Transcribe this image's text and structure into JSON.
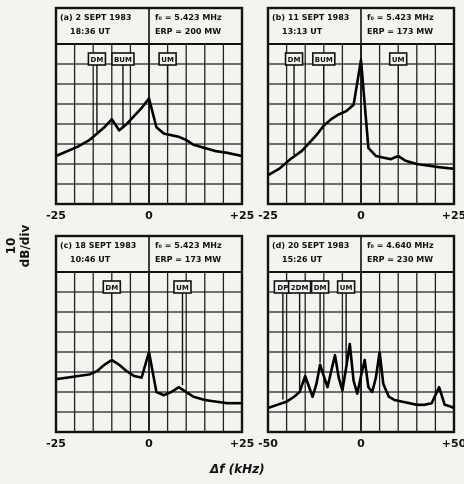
{
  "ylabel": "10 dB/div",
  "xlabel": "Δf (kHz)",
  "chart_data": [
    {
      "type": "line",
      "panel": "(a)",
      "date": "2 SEPT 1983",
      "time": "18:36 UT",
      "freq": "f₀ = 5.423 MHz",
      "erp": "ERP = 200 MW",
      "xlim": [
        -25,
        25
      ],
      "xticks": [
        "-25",
        "0",
        "+25"
      ],
      "markers": [
        {
          "label": "DM",
          "x": -14
        },
        {
          "label": "BUM",
          "x": -7
        },
        {
          "label": "UM",
          "x": 5
        }
      ],
      "x": [
        -25,
        -22,
        -19,
        -16,
        -14,
        -12,
        -10,
        -8,
        -6,
        -4,
        -2,
        0,
        2,
        4,
        6,
        8,
        10,
        12,
        15,
        18,
        21,
        25
      ],
      "y": [
        3.0,
        3.3,
        3.6,
        4.0,
        4.4,
        4.8,
        5.3,
        4.6,
        5.0,
        5.5,
        6.0,
        6.6,
        4.8,
        4.4,
        4.3,
        4.2,
        4.0,
        3.7,
        3.5,
        3.3,
        3.2,
        3.0
      ]
    },
    {
      "type": "line",
      "panel": "(b)",
      "date": "11 SEPT 1983",
      "time": "13:13 UT",
      "freq": "f₀ = 5.423 MHz",
      "erp": "ERP = 173 MW",
      "xlim": [
        -25,
        25
      ],
      "xticks": [
        "-25",
        "0",
        "+25"
      ],
      "markers": [
        {
          "label": "DM",
          "x": -18
        },
        {
          "label": "BUM",
          "x": -10
        },
        {
          "label": "UM",
          "x": 10
        }
      ],
      "x": [
        -25,
        -22,
        -19,
        -16,
        -14,
        -12,
        -10,
        -8,
        -6,
        -4,
        -2,
        0,
        2,
        4,
        6,
        8,
        10,
        12,
        15,
        18,
        21,
        25
      ],
      "y": [
        1.8,
        2.2,
        2.8,
        3.3,
        3.8,
        4.3,
        4.9,
        5.3,
        5.6,
        5.8,
        6.2,
        9.0,
        3.5,
        3.0,
        2.9,
        2.8,
        3.0,
        2.7,
        2.5,
        2.4,
        2.3,
        2.2
      ]
    },
    {
      "type": "line",
      "panel": "(c)",
      "date": "18 SEPT 1983",
      "time": "10:46 UT",
      "freq": "f₀ = 5.423 MHz",
      "erp": "ERP = 173 MW",
      "xlim": [
        -25,
        25
      ],
      "xticks": [
        "-25",
        "0",
        "+25"
      ],
      "markers": [
        {
          "label": "DM",
          "x": -10
        },
        {
          "label": "UM",
          "x": 9
        }
      ],
      "x": [
        -25,
        -22,
        -19,
        -16,
        -14,
        -12,
        -10,
        -8,
        -6,
        -4,
        -2,
        0,
        2,
        4,
        6,
        8,
        10,
        12,
        15,
        18,
        21,
        25
      ],
      "y": [
        3.3,
        3.4,
        3.5,
        3.6,
        3.8,
        4.2,
        4.5,
        4.2,
        3.8,
        3.5,
        3.4,
        5.0,
        2.5,
        2.3,
        2.5,
        2.8,
        2.5,
        2.2,
        2.0,
        1.9,
        1.8,
        1.8
      ]
    },
    {
      "type": "line",
      "panel": "(d)",
      "date": "20 SEPT 1983",
      "time": "15:26 UT",
      "freq": "f₀ = 4.640 MHz",
      "erp": "ERP = 230 MW",
      "xlim": [
        -50,
        50
      ],
      "xticks": [
        "-50",
        "0",
        "+50"
      ],
      "markers": [
        {
          "label": "DP",
          "x": -42
        },
        {
          "label": "2DM",
          "x": -33
        },
        {
          "label": "DM",
          "x": -22
        },
        {
          "label": "UM",
          "x": -8
        }
      ],
      "x": [
        -50,
        -45,
        -40,
        -36,
        -33,
        -30,
        -26,
        -24,
        -22,
        -20,
        -18,
        -16,
        -14,
        -12,
        -10,
        -8,
        -6,
        -4,
        -2,
        0,
        2,
        4,
        6,
        8,
        10,
        12,
        15,
        18,
        22,
        26,
        30,
        34,
        38,
        42,
        45,
        48,
        50
      ],
      "y": [
        1.5,
        1.7,
        1.9,
        2.2,
        2.5,
        3.5,
        2.2,
        3.0,
        4.2,
        3.5,
        2.8,
        3.8,
        4.8,
        3.4,
        2.6,
        4.0,
        5.5,
        3.2,
        2.4,
        3.5,
        4.5,
        2.8,
        2.5,
        3.4,
        5.0,
        3.0,
        2.2,
        2.0,
        1.9,
        1.8,
        1.7,
        1.7,
        1.8,
        2.8,
        1.7,
        1.6,
        1.5
      ]
    }
  ]
}
